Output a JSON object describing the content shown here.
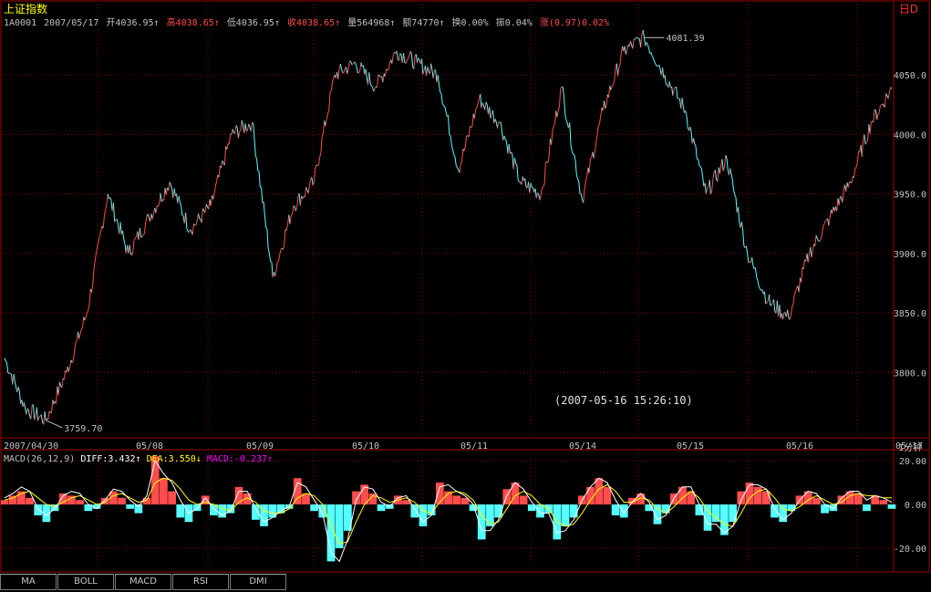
{
  "header": {
    "index_name": "上证指数",
    "corner_label": "日D"
  },
  "infobar": {
    "code": "1A0001",
    "date": "2007/05/17",
    "open_label": "开4036.95↑",
    "high_label": "高4038.65↑",
    "low_label": "低4036.95↑",
    "close_label": "收4038.65↑",
    "volume_label": "量564968↑",
    "amount_label": "额74770↑",
    "turnover_label": "换0.00%",
    "amplitude_label": "振0.04%",
    "change_label": "涨(0.97)0.02%"
  },
  "macd_header": {
    "name": "MACD(26,12,9)",
    "diff": "DIFF:3.432↑",
    "dea": "DEA:3.550↓",
    "macd": "MACD:-0.237↑"
  },
  "period_label": "1分钟",
  "tabs": [
    "MA",
    "BOLL",
    "MACD",
    "RSI",
    "DMI"
  ],
  "colors": {
    "up": "#ff4c4c",
    "down": "#54ffff",
    "diff": "#ffffff",
    "dea": "#ffff00",
    "macd_label": "#ff00ff",
    "grid": "#8b0000"
  },
  "chart_data": [
    {
      "type": "line",
      "name": "intraday minute price",
      "x": [
        "04/30",
        "04/30",
        "04/30",
        "04/30",
        "04/30",
        "05/08",
        "05/08",
        "05/08",
        "05/08",
        "05/08",
        "05/09",
        "05/09",
        "05/09",
        "05/09",
        "05/09",
        "05/09",
        "05/10",
        "05/10",
        "05/10",
        "05/10",
        "05/10",
        "05/11",
        "05/11",
        "05/11",
        "05/11",
        "05/11",
        "05/14",
        "05/14",
        "05/14",
        "05/14",
        "05/14",
        "05/14",
        "05/15",
        "05/15",
        "05/15",
        "05/15",
        "05/15",
        "05/16",
        "05/16",
        "05/16",
        "05/16",
        "05/16",
        "05/17",
        "05/17"
      ],
      "y": [
        3812,
        3770,
        3759.7,
        3800,
        3850,
        3950,
        3900,
        3930,
        3960,
        3920,
        3940,
        4000,
        4010,
        3880,
        3940,
        3960,
        4050,
        4060,
        4040,
        4070,
        4060,
        4050,
        3970,
        4030,
        4010,
        3960,
        3950,
        4040,
        3945,
        4020,
        4070,
        4081.39,
        4050,
        4020,
        3950,
        3980,
        3900,
        3860,
        3846,
        3900,
        3930,
        3960,
        4010,
        4038.65
      ],
      "y_ticks": [
        "3800.0",
        "3850.0",
        "3900.0",
        "3950.0",
        "4000.0",
        "4050.0"
      ],
      "x_ticks": [
        "2007/04/30",
        "05/08",
        "05/09",
        "05/10",
        "05/11",
        "05/14",
        "05/15",
        "05/16",
        "05/17"
      ],
      "ylim": [
        3745,
        4090
      ],
      "annotations": {
        "high": "4081.39",
        "low": "3759.70",
        "cursor_time": "(2007-05-16 15:26:10)"
      }
    },
    {
      "type": "bar",
      "name": "MACD",
      "y_ticks": [
        "20.00",
        "0.00",
        "-20.00"
      ],
      "ylim": [
        -30,
        25
      ],
      "histogram": [
        2,
        4,
        6,
        3,
        -5,
        -8,
        -3,
        5,
        4,
        2,
        -3,
        -2,
        3,
        6,
        3,
        -2,
        -4,
        3,
        22,
        12,
        6,
        -6,
        -8,
        -3,
        4,
        -5,
        -6,
        -4,
        8,
        5,
        -7,
        -10,
        -6,
        -4,
        -2,
        12,
        5,
        -3,
        -6,
        -26,
        -20,
        -12,
        6,
        9,
        5,
        -3,
        -2,
        4,
        2,
        -6,
        -10,
        -5,
        10,
        6,
        4,
        3,
        -3,
        -16,
        -10,
        -6,
        7,
        10,
        4,
        -3,
        -6,
        -4,
        -16,
        -10,
        -6,
        4,
        8,
        12,
        8,
        -5,
        -6,
        3,
        5,
        -3,
        -9,
        -4,
        5,
        8,
        6,
        -5,
        -12,
        -8,
        -14,
        -8,
        6,
        10,
        8,
        6,
        -6,
        -8,
        -3,
        4,
        6,
        3,
        -4,
        -3,
        4,
        6,
        5,
        -3,
        4,
        2,
        -2
      ],
      "diff": [
        3,
        5,
        8,
        6,
        -2,
        -5,
        -2,
        4,
        6,
        5,
        0,
        -2,
        2,
        7,
        6,
        2,
        -1,
        4,
        20,
        14,
        10,
        2,
        -4,
        -2,
        3,
        -2,
        -5,
        -3,
        6,
        6,
        -2,
        -8,
        -6,
        -3,
        -1,
        10,
        8,
        2,
        -4,
        -22,
        -26,
        -16,
        2,
        8,
        7,
        1,
        -1,
        3,
        4,
        -2,
        -8,
        -5,
        8,
        9,
        6,
        4,
        0,
        -12,
        -12,
        -7,
        4,
        10,
        7,
        1,
        -4,
        -4,
        -13,
        -12,
        -7,
        2,
        8,
        12,
        10,
        2,
        -4,
        1,
        5,
        1,
        -7,
        -5,
        3,
        8,
        8,
        0,
        -9,
        -9,
        -13,
        -10,
        2,
        9,
        9,
        7,
        -2,
        -7,
        -4,
        2,
        6,
        5,
        0,
        -2,
        3,
        6,
        6,
        2,
        4,
        3,
        1
      ],
      "dea": [
        2,
        3,
        5,
        6,
        3,
        0,
        -1,
        1,
        3,
        4,
        2,
        0,
        1,
        4,
        5,
        3,
        1,
        2,
        10,
        12,
        11,
        7,
        2,
        0,
        1,
        0,
        -2,
        -3,
        1,
        3,
        1,
        -3,
        -4,
        -4,
        -2,
        3,
        5,
        4,
        0,
        -10,
        -18,
        -17,
        -8,
        0,
        4,
        3,
        1,
        2,
        3,
        1,
        -3,
        -4,
        1,
        5,
        6,
        5,
        2,
        -5,
        -9,
        -8,
        -2,
        4,
        6,
        4,
        0,
        -2,
        -8,
        -10,
        -9,
        -4,
        2,
        7,
        9,
        6,
        1,
        1,
        3,
        2,
        -2,
        -4,
        -1,
        3,
        6,
        3,
        -3,
        -6,
        -9,
        -10,
        -4,
        3,
        6,
        7,
        3,
        -2,
        -3,
        -1,
        2,
        4,
        2,
        0,
        1,
        4,
        5,
        4,
        4,
        3,
        3
      ]
    }
  ]
}
